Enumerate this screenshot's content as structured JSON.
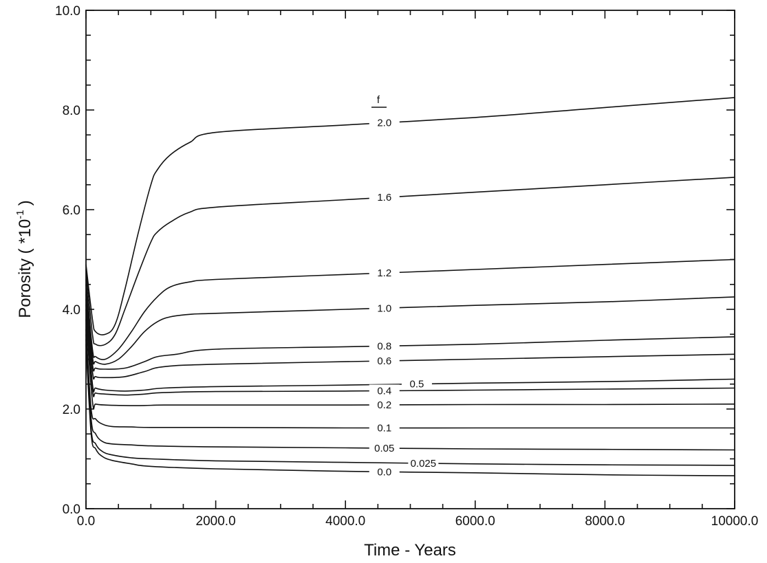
{
  "chart_data": {
    "type": "line",
    "title": "",
    "xlabel": "Time - Years",
    "ylabel": "Porosity ( *10",
    "ylabel_superscript": "-1",
    "ylabel_close": ")",
    "xlim": [
      0,
      10000
    ],
    "ylim": [
      0,
      10
    ],
    "x_ticks": [
      "0.0",
      "2000.0",
      "4000.0",
      "6000.0",
      "8000.0",
      "10000.0"
    ],
    "y_ticks": [
      "0.0",
      "2.0",
      "4.0",
      "6.0",
      "8.0",
      "10.0"
    ],
    "legend_header": "f",
    "grid": false,
    "series": [
      {
        "name": "2.0",
        "label_x": 4600,
        "x": [
          0,
          100,
          150,
          300,
          450,
          600,
          800,
          1000,
          1100,
          1300,
          1600,
          2000,
          4000,
          6000,
          8000,
          10000
        ],
        "y": [
          4.9,
          3.8,
          3.55,
          3.5,
          3.7,
          4.4,
          5.5,
          6.5,
          6.8,
          7.1,
          7.35,
          7.55,
          7.7,
          7.85,
          8.05,
          8.25
        ]
      },
      {
        "name": "1.6",
        "label_x": 4600,
        "x": [
          0,
          100,
          150,
          300,
          450,
          600,
          800,
          1000,
          1100,
          1300,
          1600,
          2000,
          4000,
          6000,
          8000,
          10000
        ],
        "y": [
          4.8,
          3.5,
          3.3,
          3.3,
          3.5,
          4.0,
          4.7,
          5.35,
          5.55,
          5.75,
          5.95,
          6.05,
          6.2,
          6.35,
          6.5,
          6.65
        ]
      },
      {
        "name": "1.2",
        "label_x": 4600,
        "x": [
          0,
          100,
          150,
          300,
          500,
          700,
          900,
          1100,
          1300,
          1600,
          2000,
          4000,
          6000,
          8000,
          10000
        ],
        "y": [
          4.6,
          3.2,
          3.05,
          3.0,
          3.2,
          3.55,
          3.95,
          4.25,
          4.45,
          4.55,
          4.6,
          4.7,
          4.8,
          4.9,
          5.0
        ]
      },
      {
        "name": "1.0",
        "label_x": 4600,
        "x": [
          0,
          100,
          150,
          300,
          500,
          700,
          900,
          1100,
          1300,
          1600,
          2000,
          4000,
          6000,
          8000,
          10000
        ],
        "y": [
          4.5,
          3.05,
          2.95,
          2.9,
          3.0,
          3.25,
          3.55,
          3.75,
          3.85,
          3.9,
          3.92,
          4.0,
          4.08,
          4.15,
          4.25
        ]
      },
      {
        "name": "0.8",
        "label_x": 4600,
        "x": [
          0,
          100,
          150,
          300,
          600,
          900,
          1100,
          1400,
          2000,
          4000,
          6000,
          8000,
          10000
        ],
        "y": [
          4.3,
          2.9,
          2.82,
          2.8,
          2.82,
          2.95,
          3.05,
          3.1,
          3.2,
          3.25,
          3.3,
          3.38,
          3.45
        ]
      },
      {
        "name": "0.6",
        "label_x": 4600,
        "x": [
          0,
          100,
          150,
          300,
          600,
          900,
          1200,
          2000,
          4000,
          6000,
          8000,
          10000
        ],
        "y": [
          4.2,
          2.75,
          2.65,
          2.63,
          2.65,
          2.75,
          2.85,
          2.9,
          2.95,
          3.0,
          3.05,
          3.1
        ]
      },
      {
        "name": "0.5",
        "label_x": 5100,
        "x": [
          0,
          100,
          150,
          300,
          600,
          900,
          1200,
          2000,
          4000,
          6000,
          8000,
          10000
        ],
        "y": [
          4.1,
          2.5,
          2.42,
          2.38,
          2.36,
          2.38,
          2.42,
          2.45,
          2.48,
          2.52,
          2.55,
          2.6
        ]
      },
      {
        "name": "0.4",
        "label_x": 4600,
        "x": [
          0,
          100,
          150,
          300,
          600,
          900,
          1200,
          2000,
          4000,
          6000,
          8000,
          10000
        ],
        "y": [
          4.0,
          2.4,
          2.32,
          2.3,
          2.28,
          2.3,
          2.33,
          2.35,
          2.36,
          2.38,
          2.4,
          2.42
        ]
      },
      {
        "name": "0.2",
        "label_x": 4600,
        "x": [
          0,
          100,
          150,
          300,
          600,
          900,
          1200,
          2000,
          4000,
          6000,
          8000,
          10000
        ],
        "y": [
          3.8,
          2.15,
          2.1,
          2.08,
          2.07,
          2.07,
          2.08,
          2.08,
          2.08,
          2.09,
          2.09,
          2.1
        ]
      },
      {
        "name": "0.1",
        "label_x": 4600,
        "x": [
          0,
          80,
          150,
          250,
          400,
          700,
          1000,
          2000,
          4000,
          6000,
          8000,
          10000
        ],
        "y": [
          3.6,
          2.0,
          1.8,
          1.7,
          1.65,
          1.64,
          1.63,
          1.63,
          1.62,
          1.62,
          1.62,
          1.62
        ]
      },
      {
        "name": "0.05",
        "label_x": 4600,
        "x": [
          0,
          80,
          150,
          250,
          400,
          700,
          1000,
          2000,
          4000,
          6000,
          8000,
          10000
        ],
        "y": [
          3.5,
          1.8,
          1.5,
          1.35,
          1.3,
          1.28,
          1.26,
          1.24,
          1.22,
          1.2,
          1.19,
          1.18
        ]
      },
      {
        "name": "0.025",
        "label_x": 5200,
        "x": [
          0,
          80,
          150,
          250,
          400,
          700,
          1000,
          2000,
          4000,
          6000,
          8000,
          10000
        ],
        "y": [
          3.4,
          1.6,
          1.3,
          1.15,
          1.08,
          1.02,
          1.0,
          0.96,
          0.93,
          0.9,
          0.88,
          0.87
        ]
      },
      {
        "name": "0.0",
        "label_x": 4600,
        "x": [
          0,
          80,
          150,
          250,
          400,
          700,
          1000,
          2000,
          4000,
          6000,
          8000,
          10000
        ],
        "y": [
          3.3,
          1.5,
          1.2,
          1.05,
          0.97,
          0.9,
          0.85,
          0.8,
          0.75,
          0.72,
          0.68,
          0.66
        ]
      }
    ]
  }
}
